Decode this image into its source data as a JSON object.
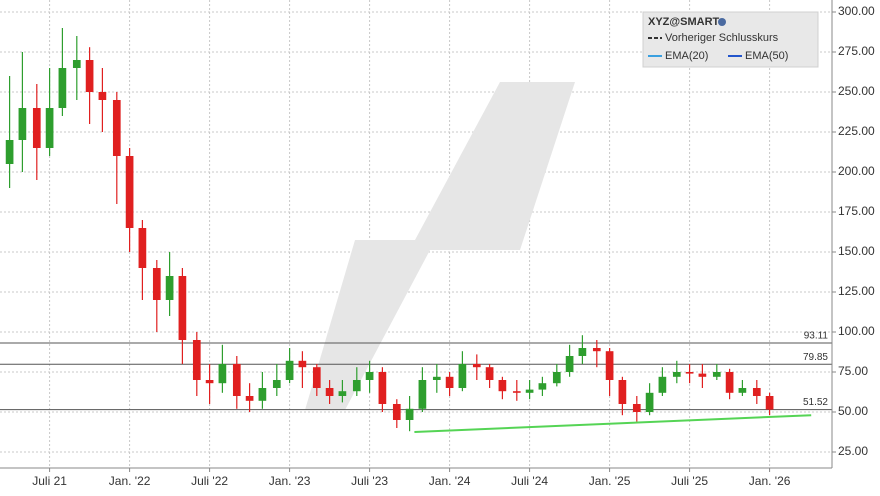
{
  "chart_data": {
    "type": "candlestick",
    "title": "XYZ@SMART",
    "x": [
      2021.25,
      2021.33,
      2021.42,
      2021.5,
      2021.58,
      2021.67,
      2021.75,
      2021.83,
      2021.92,
      2022.0,
      2022.08,
      2022.17,
      2022.25,
      2022.33,
      2022.42,
      2022.5,
      2022.58,
      2022.67,
      2022.75,
      2022.83,
      2022.92,
      2023.0,
      2023.08,
      2023.17,
      2023.25,
      2023.33,
      2023.42,
      2023.5,
      2023.58,
      2023.67,
      2023.75,
      2023.83,
      2023.92,
      2024.0,
      2024.08,
      2024.17,
      2024.25,
      2024.33,
      2024.42,
      2024.5,
      2024.58,
      2024.67,
      2024.75,
      2024.83,
      2024.92,
      2025.0,
      2025.08,
      2025.17,
      2025.25,
      2025.33,
      2025.42,
      2025.5,
      2025.58,
      2025.67,
      2025.75,
      2025.83,
      2025.92,
      2026.0
    ],
    "open": [
      205,
      220,
      240,
      215,
      240,
      265,
      270,
      250,
      245,
      210,
      165,
      140,
      120,
      135,
      95,
      70,
      68,
      80,
      60,
      57,
      65,
      70,
      82,
      78,
      65,
      60,
      63,
      70,
      75,
      55,
      45,
      52,
      70,
      72,
      65,
      80,
      78,
      70,
      63,
      62,
      64,
      68,
      75,
      85,
      90,
      88,
      70,
      55,
      50,
      62,
      72,
      75,
      74,
      72,
      75,
      62,
      65,
      60
    ],
    "high": [
      260,
      275,
      255,
      265,
      290,
      285,
      278,
      265,
      250,
      215,
      170,
      145,
      150,
      140,
      100,
      80,
      92,
      85,
      68,
      75,
      80,
      90,
      88,
      80,
      70,
      70,
      78,
      82,
      78,
      58,
      60,
      78,
      80,
      75,
      88,
      86,
      80,
      72,
      70,
      70,
      72,
      80,
      92,
      98,
      95,
      90,
      72,
      60,
      68,
      78,
      82,
      80,
      80,
      80,
      77,
      70,
      70,
      62
    ],
    "low": [
      190,
      200,
      195,
      210,
      235,
      245,
      230,
      225,
      180,
      150,
      120,
      100,
      110,
      80,
      60,
      55,
      62,
      52,
      50,
      52,
      60,
      68,
      65,
      60,
      55,
      56,
      60,
      62,
      50,
      40,
      38,
      50,
      62,
      60,
      63,
      70,
      65,
      58,
      57,
      58,
      60,
      66,
      72,
      80,
      78,
      60,
      48,
      44,
      48,
      60,
      68,
      68,
      65,
      70,
      58,
      60,
      55,
      48
    ],
    "close": [
      220,
      240,
      215,
      240,
      265,
      270,
      250,
      245,
      210,
      165,
      140,
      120,
      135,
      95,
      70,
      68,
      80,
      60,
      57,
      65,
      70,
      82,
      78,
      65,
      60,
      63,
      70,
      75,
      55,
      45,
      52,
      70,
      72,
      65,
      80,
      78,
      70,
      63,
      62,
      64,
      68,
      75,
      85,
      90,
      88,
      70,
      55,
      50,
      62,
      72,
      75,
      74,
      72,
      75,
      62,
      65,
      60,
      51.52
    ],
    "up_color": "#2e9e2e",
    "down_color": "#e02020",
    "xlim": [
      2021.19,
      2026.39
    ],
    "xticks": [
      {
        "value": 2021.5,
        "label": "Juli 21"
      },
      {
        "value": 2022.0,
        "label": "Jan. '22"
      },
      {
        "value": 2022.5,
        "label": "Juli '22"
      },
      {
        "value": 2023.0,
        "label": "Jan. '23"
      },
      {
        "value": 2023.5,
        "label": "Juli '23"
      },
      {
        "value": 2024.0,
        "label": "Jan. '24"
      },
      {
        "value": 2024.5,
        "label": "Juli '24"
      },
      {
        "value": 2025.0,
        "label": "Jan. '25"
      },
      {
        "value": 2025.5,
        "label": "Juli '25"
      },
      {
        "value": 2026.0,
        "label": "Jan. '26"
      }
    ],
    "ylim": [
      15,
      307.5
    ],
    "yticks": [
      {
        "value": 25,
        "label": "25.00"
      },
      {
        "value": 50,
        "label": "50.00"
      },
      {
        "value": 75,
        "label": "75.00"
      },
      {
        "value": 100,
        "label": "100.00"
      },
      {
        "value": 125,
        "label": "125.00"
      },
      {
        "value": 150,
        "label": "150.00"
      },
      {
        "value": 175,
        "label": "175.00"
      },
      {
        "value": 200,
        "label": "200.00"
      },
      {
        "value": 225,
        "label": "225.00"
      },
      {
        "value": 250,
        "label": "250.00"
      },
      {
        "value": 275,
        "label": "275.00"
      },
      {
        "value": 300,
        "label": "300.00"
      }
    ],
    "grid": true,
    "levels": [
      93.11,
      79.85,
      51.52
    ],
    "trendline": {
      "x": [
        2023.78,
        2026.26
      ],
      "values": [
        37.5,
        48
      ],
      "color": "#55d455"
    },
    "legend": [
      {
        "name": "Vorheriger Schlusskurs",
        "color": "#333333"
      },
      {
        "name": "EMA(20)",
        "color": "#3aa0e0"
      },
      {
        "name": "EMA(50)",
        "color": "#2255cc"
      }
    ]
  }
}
